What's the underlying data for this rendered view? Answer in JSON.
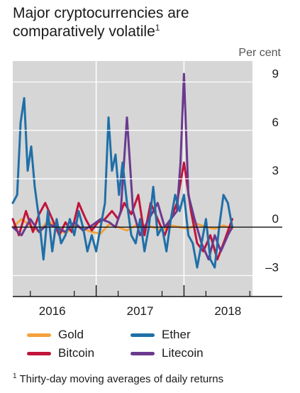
{
  "title": {
    "line1": "Major cryptocurrencies are",
    "line2": "comparatively volatile",
    "note_mark": "1"
  },
  "footnote": {
    "mark": "1",
    "text": "Thirty-day moving averages of daily returns"
  },
  "chart_data": {
    "type": "line",
    "title": "Major cryptocurrencies are comparatively volatile",
    "ylabel": "Per cent",
    "xlabel": "",
    "xlim": [
      2015.55,
      2018.28
    ],
    "ylim": [
      -4.3,
      10.3
    ],
    "yticks": [
      9,
      6,
      3,
      0,
      -3
    ],
    "ytick_labels": [
      "9",
      "6",
      "3",
      "0",
      "–3"
    ],
    "xtick_labels": [
      {
        "label": "2016",
        "x": 2016.0
      },
      {
        "label": "2017",
        "x": 2017.0
      },
      {
        "label": "2018",
        "x": 2018.0
      }
    ],
    "year_boundaries": [
      2016.5,
      2017.5
    ],
    "minor_ticks": [
      2015.75,
      2016.25,
      2016.75,
      2017.25,
      2017.75,
      2018.25
    ],
    "grid": "vertical year lines",
    "legend_position": "bottom",
    "series": [
      {
        "name": "Gold",
        "color": "#f5a23c",
        "x": [
          2015.55,
          2015.65,
          2015.75,
          2015.85,
          2015.95,
          2016.05,
          2016.15,
          2016.25,
          2016.35,
          2016.45,
          2016.55,
          2016.65,
          2016.75,
          2016.85,
          2016.95,
          2017.05,
          2017.15,
          2017.25,
          2017.35,
          2017.45,
          2017.55,
          2017.65,
          2017.75,
          2017.85,
          2017.95,
          2018.05
        ],
        "values": [
          0.0,
          0.5,
          0.1,
          -0.3,
          0.4,
          0.0,
          -0.4,
          0.1,
          -0.1,
          -0.3,
          -0.4,
          0.2,
          0.0,
          -0.2,
          0.1,
          0.1,
          0.0,
          -0.2,
          0.1,
          0.0,
          -0.1,
          0.2,
          0.0,
          -0.1,
          0.1,
          -0.1
        ]
      },
      {
        "name": "Ether",
        "color": "#1f6fa8",
        "x": [
          2015.55,
          2015.6,
          2015.64,
          2015.68,
          2015.72,
          2015.76,
          2015.8,
          2015.85,
          2015.9,
          2015.95,
          2016.0,
          2016.05,
          2016.1,
          2016.15,
          2016.2,
          2016.25,
          2016.3,
          2016.35,
          2016.4,
          2016.45,
          2016.5,
          2016.55,
          2016.6,
          2016.64,
          2016.68,
          2016.72,
          2016.76,
          2016.8,
          2016.85,
          2016.9,
          2016.95,
          2017.0,
          2017.05,
          2017.1,
          2017.15,
          2017.2,
          2017.25,
          2017.3,
          2017.35,
          2017.4,
          2017.45,
          2017.5,
          2017.55,
          2017.6,
          2017.65,
          2017.7,
          2017.75,
          2017.8,
          2017.85,
          2017.9,
          2017.95,
          2018.0,
          2018.05
        ],
        "values": [
          1.5,
          2.0,
          6.5,
          8.0,
          3.5,
          5.0,
          2.5,
          0.5,
          -2.0,
          1.0,
          -1.5,
          0.5,
          -1.0,
          -0.5,
          0.5,
          -0.5,
          1.0,
          0.0,
          -1.5,
          -0.5,
          -1.5,
          0.0,
          1.5,
          6.8,
          3.5,
          4.5,
          2.0,
          4.0,
          1.5,
          -0.5,
          -1.0,
          0.5,
          -1.5,
          0.0,
          2.5,
          -0.5,
          0.0,
          -1.5,
          0.5,
          2.0,
          1.0,
          2.0,
          -0.5,
          -1.0,
          -2.5,
          -1.0,
          0.5,
          -2.0,
          -2.5,
          0.0,
          2.0,
          1.5,
          0.0
        ]
      },
      {
        "name": "Bitcoin",
        "color": "#c0143c",
        "x": [
          2015.55,
          2015.62,
          2015.7,
          2015.78,
          2015.85,
          2015.92,
          2016.0,
          2016.08,
          2016.15,
          2016.22,
          2016.3,
          2016.38,
          2016.45,
          2016.52,
          2016.6,
          2016.68,
          2016.75,
          2016.82,
          2016.9,
          2016.98,
          2017.05,
          2017.12,
          2017.2,
          2017.28,
          2017.35,
          2017.42,
          2017.5,
          2017.58,
          2017.65,
          2017.72,
          2017.8,
          2017.88,
          2017.95,
          2018.05
        ],
        "values": [
          0.5,
          -0.5,
          1.0,
          -0.3,
          0.8,
          1.5,
          0.5,
          -0.5,
          0.3,
          -0.3,
          1.5,
          0.5,
          -0.2,
          0.3,
          0.5,
          1.0,
          0.5,
          1.5,
          0.8,
          2.0,
          -0.5,
          1.5,
          0.5,
          -0.5,
          0.5,
          1.5,
          4.0,
          1.0,
          -1.0,
          -1.5,
          -0.5,
          -2.0,
          -1.0,
          0.5
        ]
      },
      {
        "name": "Litecoin",
        "color": "#6b3a8e",
        "x": [
          2015.55,
          2015.65,
          2015.75,
          2015.85,
          2015.95,
          2016.05,
          2016.15,
          2016.25,
          2016.35,
          2016.45,
          2016.55,
          2016.65,
          2016.72,
          2016.78,
          2016.85,
          2016.92,
          2017.0,
          2017.1,
          2017.2,
          2017.28,
          2017.35,
          2017.42,
          2017.46,
          2017.5,
          2017.55,
          2017.62,
          2017.7,
          2017.78,
          2017.85,
          2017.92,
          2018.0,
          2018.05
        ],
        "values": [
          0.0,
          -0.5,
          0.5,
          -0.3,
          0.2,
          0.0,
          -0.3,
          0.3,
          -0.2,
          0.1,
          0.5,
          0.3,
          0.0,
          1.0,
          6.8,
          1.0,
          -0.5,
          0.5,
          1.5,
          0.0,
          0.5,
          1.0,
          4.0,
          9.5,
          2.0,
          0.5,
          -1.0,
          -2.0,
          -0.5,
          -1.5,
          -0.5,
          0.0
        ]
      }
    ]
  },
  "legend": {
    "items": [
      {
        "name": "Gold",
        "color": "#f5a23c"
      },
      {
        "name": "Ether",
        "color": "#1f6fa8"
      },
      {
        "name": "Bitcoin",
        "color": "#c0143c"
      },
      {
        "name": "Litecoin",
        "color": "#6b3a8e"
      }
    ]
  }
}
